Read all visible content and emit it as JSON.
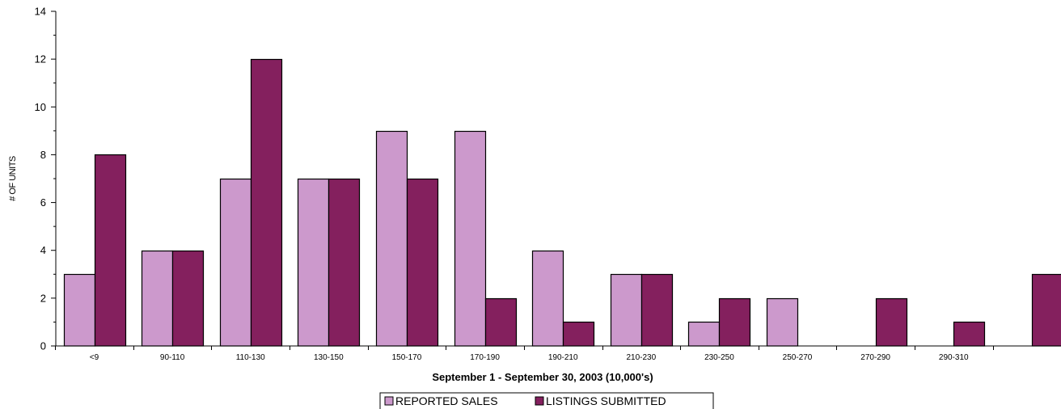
{
  "chart_data": {
    "type": "bar",
    "categories": [
      "<9",
      "90-110",
      "110-130",
      "130-150",
      "150-170",
      "170-190",
      "190-210",
      "210-230",
      "230-250",
      "250-270",
      "270-290",
      "290-310",
      ""
    ],
    "series": [
      {
        "name": "REPORTED SALES",
        "values": [
          3,
          4,
          7,
          7,
          9,
          9,
          4,
          3,
          1,
          2,
          0,
          0,
          0
        ],
        "color": "#cc99cc"
      },
      {
        "name": "LISTINGS SUBMITTED",
        "values": [
          8,
          4,
          12,
          7,
          7,
          2,
          1,
          3,
          2,
          0,
          2,
          1,
          3
        ],
        "color": "#84205e"
      }
    ],
    "xlabel": "September 1 - September 30, 2003 (10,000's)",
    "ylabel": "# OF UNITS",
    "ylim": [
      0,
      14
    ],
    "yticks": [
      0,
      2,
      4,
      6,
      8,
      10,
      12,
      14
    ],
    "grid": false,
    "legend_position": "bottom-center"
  }
}
